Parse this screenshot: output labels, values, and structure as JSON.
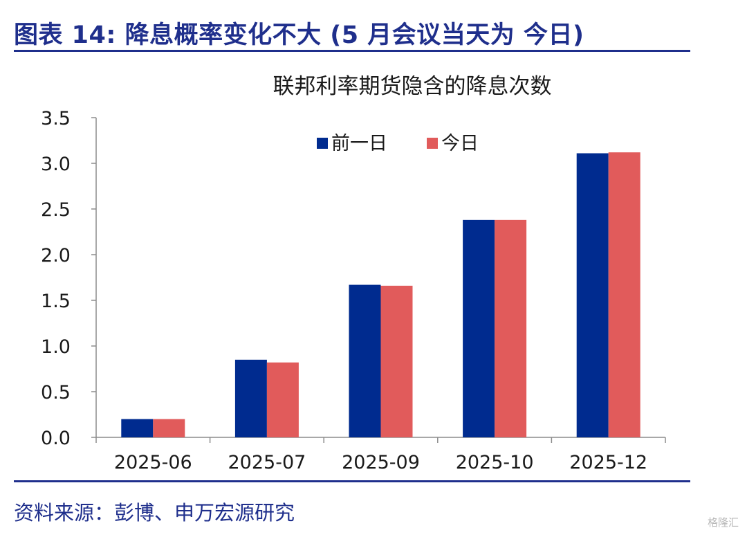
{
  "figure_title": "图表 14: 降息概率变化不大 (5 月会议当天为  今日)",
  "source_note": "资料来源：彭博、申万宏源研究",
  "watermark": "格隆汇",
  "colors": {
    "accent": "#1f2f8c",
    "series_prev": "#002b8f",
    "series_today": "#e15b5b"
  },
  "chart_data": {
    "type": "bar",
    "title": "联邦利率期货隐含的降息次数",
    "xlabel": "",
    "ylabel": "",
    "categories": [
      "2025-06",
      "2025-07",
      "2025-09",
      "2025-10",
      "2025-12"
    ],
    "series": [
      {
        "name": "前一日",
        "values": [
          0.2,
          0.85,
          1.67,
          2.38,
          3.11
        ]
      },
      {
        "name": "今日",
        "values": [
          0.2,
          0.82,
          1.66,
          2.38,
          3.12
        ]
      }
    ],
    "ylim": [
      0,
      3.5
    ],
    "yticks": [
      "0.0",
      "0.5",
      "1.0",
      "1.5",
      "2.0",
      "2.5",
      "3.0",
      "3.5"
    ],
    "grid": false,
    "legend_position": "top-center"
  }
}
